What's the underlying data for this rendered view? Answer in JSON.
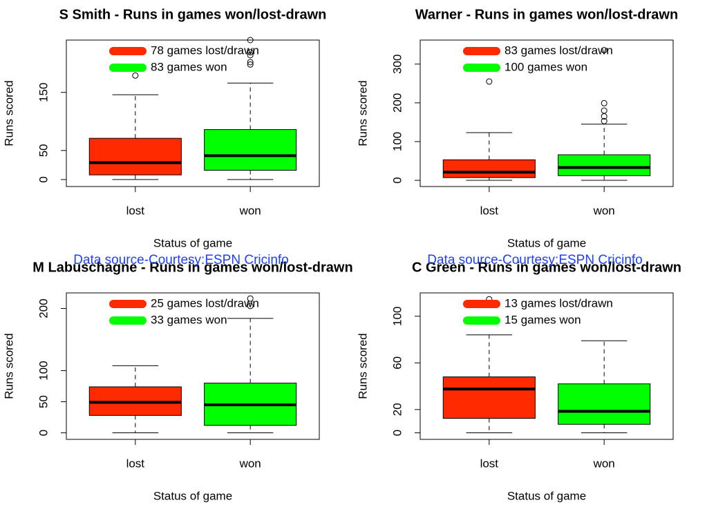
{
  "chart_data": [
    {
      "type": "box",
      "title": "S Smith - Runs in games won/lost-drawn",
      "xlabel": "Status of game",
      "ylabel": "Runs scored",
      "annotation": "Data source-Courtesy:ESPN Cricinfo",
      "categories": [
        "lost",
        "won"
      ],
      "ylim": [
        -12,
        240
      ],
      "yticks": [
        0,
        50,
        150
      ],
      "series": [
        {
          "name": "78 games lost/drawn",
          "color": "#ff2a00",
          "whislo": 0,
          "q1": 8,
          "med": 29,
          "q3": 71,
          "whishi": 146,
          "fliers": [
            179
          ]
        },
        {
          "name": "83 games won",
          "color": "#00ff00",
          "whislo": 0,
          "q1": 16,
          "med": 41,
          "q3": 86,
          "whishi": 166,
          "fliers": [
            240,
            219,
            214,
            202,
            198
          ]
        }
      ]
    },
    {
      "type": "box",
      "title": "Warner - Runs in games won/lost-drawn",
      "xlabel": "Status of game",
      "ylabel": "Runs scored",
      "annotation": "Data source-Courtesy:ESPN Cricinfo",
      "categories": [
        "lost",
        "won"
      ],
      "ylim": [
        -16,
        362
      ],
      "yticks": [
        0,
        100,
        200,
        300
      ],
      "series": [
        {
          "name": "83 games lost/drawn",
          "color": "#ff2a00",
          "whislo": 0,
          "q1": 7,
          "med": 21,
          "q3": 53,
          "whishi": 123,
          "fliers": [
            255
          ]
        },
        {
          "name": "100 games won",
          "color": "#00ff00",
          "whislo": 0,
          "q1": 12,
          "med": 33,
          "q3": 66,
          "whishi": 145,
          "fliers": [
            336,
            199,
            180,
            165,
            153
          ]
        }
      ]
    },
    {
      "type": "box",
      "title": "M Labuschagne - Runs in games won/lost-drawn",
      "xlabel": "Status of game",
      "ylabel": "Runs scored",
      "categories": [
        "lost",
        "won"
      ],
      "ylim": [
        -10.5,
        225
      ],
      "yticks": [
        0,
        50,
        100,
        200
      ],
      "series": [
        {
          "name": "25 games lost/drawn",
          "color": "#ff2a00",
          "whislo": 0,
          "q1": 28,
          "med": 49,
          "q3": 74,
          "whishi": 108,
          "fliers": []
        },
        {
          "name": "33 games won",
          "color": "#00ff00",
          "whislo": 0,
          "q1": 12,
          "med": 45,
          "q3": 80,
          "whishi": 184,
          "fliers": [
            216,
            204
          ]
        }
      ]
    },
    {
      "type": "box",
      "title": "C Green - Runs in games won/lost-drawn",
      "xlabel": "Status of game",
      "ylabel": "Runs scored",
      "categories": [
        "lost",
        "won"
      ],
      "ylim": [
        -5.6,
        120
      ],
      "yticks": [
        0,
        20,
        60,
        100
      ],
      "series": [
        {
          "name": "13 games lost/drawn",
          "color": "#ff2a00",
          "whislo": 0,
          "q1": 12.4,
          "med": 37.6,
          "q3": 48,
          "whishi": 84,
          "fliers": [
            114.6
          ]
        },
        {
          "name": "15 games won",
          "color": "#00ff00",
          "whislo": 0,
          "q1": 7.3,
          "med": 18.5,
          "q3": 42,
          "whishi": 79,
          "fliers": []
        }
      ]
    }
  ]
}
